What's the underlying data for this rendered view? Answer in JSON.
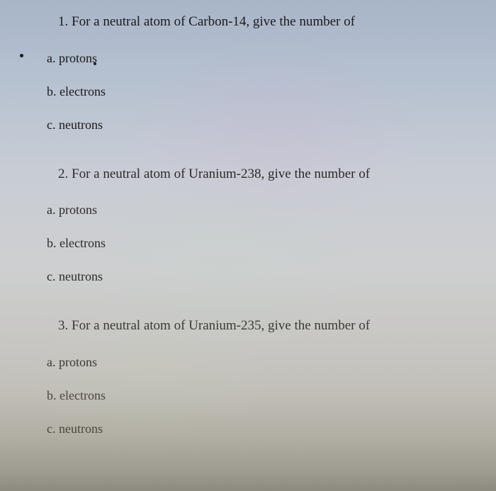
{
  "questions": [
    {
      "number": "1.",
      "prompt": "For a neutral atom of Carbon-14, give the number of",
      "items": [
        {
          "letter": "a.",
          "label": "protons"
        },
        {
          "letter": "b.",
          "label": "electrons"
        },
        {
          "letter": "c.",
          "label": "neutrons"
        }
      ]
    },
    {
      "number": "2.",
      "prompt": "For a neutral atom of Uranium-238, give the number of",
      "items": [
        {
          "letter": "a.",
          "label": "protons"
        },
        {
          "letter": "b.",
          "label": "electrons"
        },
        {
          "letter": "c.",
          "label": "neutrons"
        }
      ]
    },
    {
      "number": "3.",
      "prompt": "For a neutral atom of Uranium-235, give the number of",
      "items": [
        {
          "letter": "a.",
          "label": "protons"
        },
        {
          "letter": "b.",
          "label": "electrons"
        },
        {
          "letter": "c.",
          "label": "neutrons"
        }
      ]
    }
  ]
}
